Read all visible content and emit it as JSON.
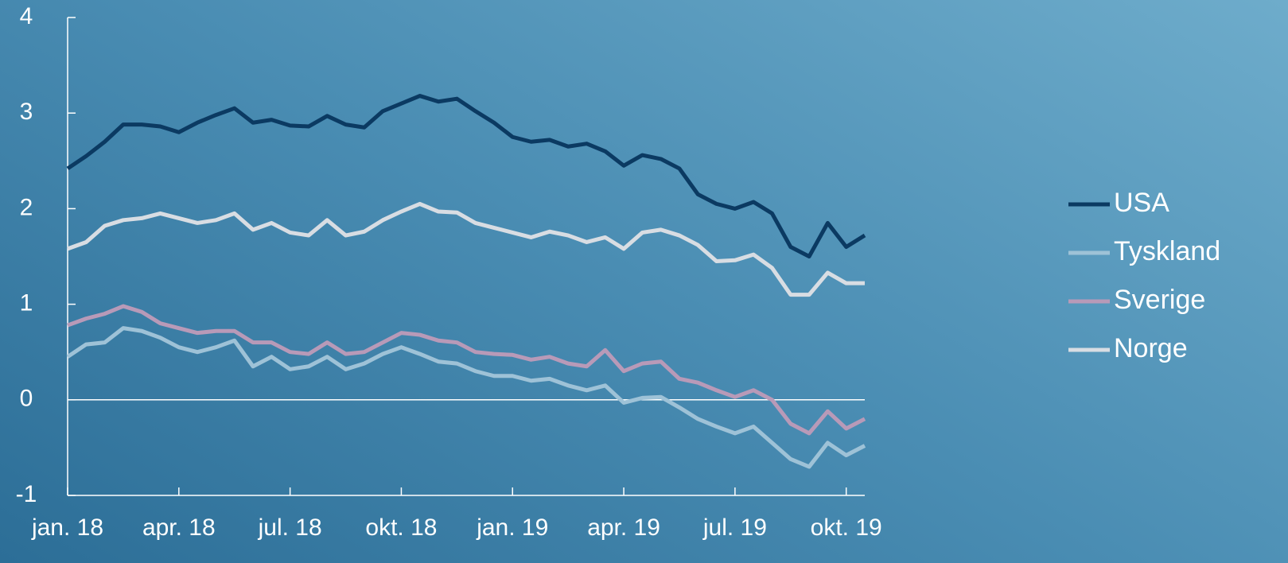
{
  "chart_data": {
    "type": "line",
    "x": [
      0,
      0.5,
      1,
      1.5,
      2,
      2.5,
      3,
      3.5,
      4,
      4.5,
      5,
      5.5,
      6,
      6.5,
      7,
      7.5,
      8,
      8.5,
      9,
      9.5,
      10,
      10.5,
      11,
      11.5,
      12,
      12.5,
      13,
      13.5,
      14,
      14.5,
      15,
      15.5,
      16,
      16.5,
      17,
      17.5,
      18,
      18.5,
      19,
      19.5,
      20,
      20.5,
      21,
      21.5
    ],
    "series": [
      {
        "name": "USA",
        "color": "#0b3a62",
        "values": [
          2.42,
          2.55,
          2.7,
          2.88,
          2.88,
          2.86,
          2.8,
          2.9,
          2.98,
          3.05,
          2.9,
          2.93,
          2.87,
          2.86,
          2.97,
          2.88,
          2.85,
          3.02,
          3.1,
          3.18,
          3.12,
          3.15,
          3.02,
          2.9,
          2.75,
          2.7,
          2.72,
          2.65,
          2.68,
          2.6,
          2.45,
          2.56,
          2.52,
          2.42,
          2.15,
          2.05,
          2.0,
          2.07,
          1.95,
          1.6,
          1.5,
          1.85,
          1.6,
          1.72
        ]
      },
      {
        "name": "Tyskland",
        "color": "#9ec2d7",
        "values": [
          0.45,
          0.58,
          0.6,
          0.75,
          0.72,
          0.65,
          0.55,
          0.5,
          0.55,
          0.62,
          0.35,
          0.45,
          0.32,
          0.35,
          0.45,
          0.32,
          0.38,
          0.48,
          0.55,
          0.48,
          0.4,
          0.38,
          0.3,
          0.25,
          0.25,
          0.2,
          0.22,
          0.15,
          0.1,
          0.15,
          -0.03,
          0.02,
          0.03,
          -0.08,
          -0.2,
          -0.28,
          -0.35,
          -0.28,
          -0.45,
          -0.62,
          -0.7,
          -0.45,
          -0.58,
          -0.48
        ]
      },
      {
        "name": "Sverige",
        "color": "#b89ab8",
        "values": [
          0.78,
          0.85,
          0.9,
          0.98,
          0.92,
          0.8,
          0.75,
          0.7,
          0.72,
          0.72,
          0.6,
          0.6,
          0.5,
          0.48,
          0.6,
          0.48,
          0.5,
          0.6,
          0.7,
          0.68,
          0.62,
          0.6,
          0.5,
          0.48,
          0.47,
          0.42,
          0.45,
          0.38,
          0.35,
          0.52,
          0.3,
          0.38,
          0.4,
          0.22,
          0.18,
          0.1,
          0.03,
          0.1,
          0.0,
          -0.25,
          -0.35,
          -0.12,
          -0.3,
          -0.2
        ]
      },
      {
        "name": "Norge",
        "color": "#d8dde3",
        "values": [
          1.58,
          1.65,
          1.82,
          1.88,
          1.9,
          1.95,
          1.9,
          1.85,
          1.88,
          1.95,
          1.78,
          1.85,
          1.75,
          1.72,
          1.88,
          1.72,
          1.76,
          1.88,
          1.97,
          2.05,
          1.97,
          1.96,
          1.85,
          1.8,
          1.75,
          1.7,
          1.76,
          1.72,
          1.65,
          1.7,
          1.58,
          1.75,
          1.78,
          1.72,
          1.62,
          1.45,
          1.46,
          1.52,
          1.38,
          1.1,
          1.1,
          1.33,
          1.22,
          1.22
        ]
      }
    ],
    "xlim": [
      0,
      21.5
    ],
    "xticks": [
      {
        "value": 0,
        "label": "jan. 18"
      },
      {
        "value": 3,
        "label": "apr. 18"
      },
      {
        "value": 6,
        "label": "jul. 18"
      },
      {
        "value": 9,
        "label": "okt. 18"
      },
      {
        "value": 12,
        "label": "jan. 19"
      },
      {
        "value": 15,
        "label": "apr. 19"
      },
      {
        "value": 18,
        "label": "jul. 19"
      },
      {
        "value": 21,
        "label": "okt. 19"
      }
    ],
    "ylim": [
      -1,
      4
    ],
    "yticks": [
      -1,
      0,
      1,
      2,
      3,
      4
    ],
    "zero_line": true,
    "legend": "right"
  }
}
